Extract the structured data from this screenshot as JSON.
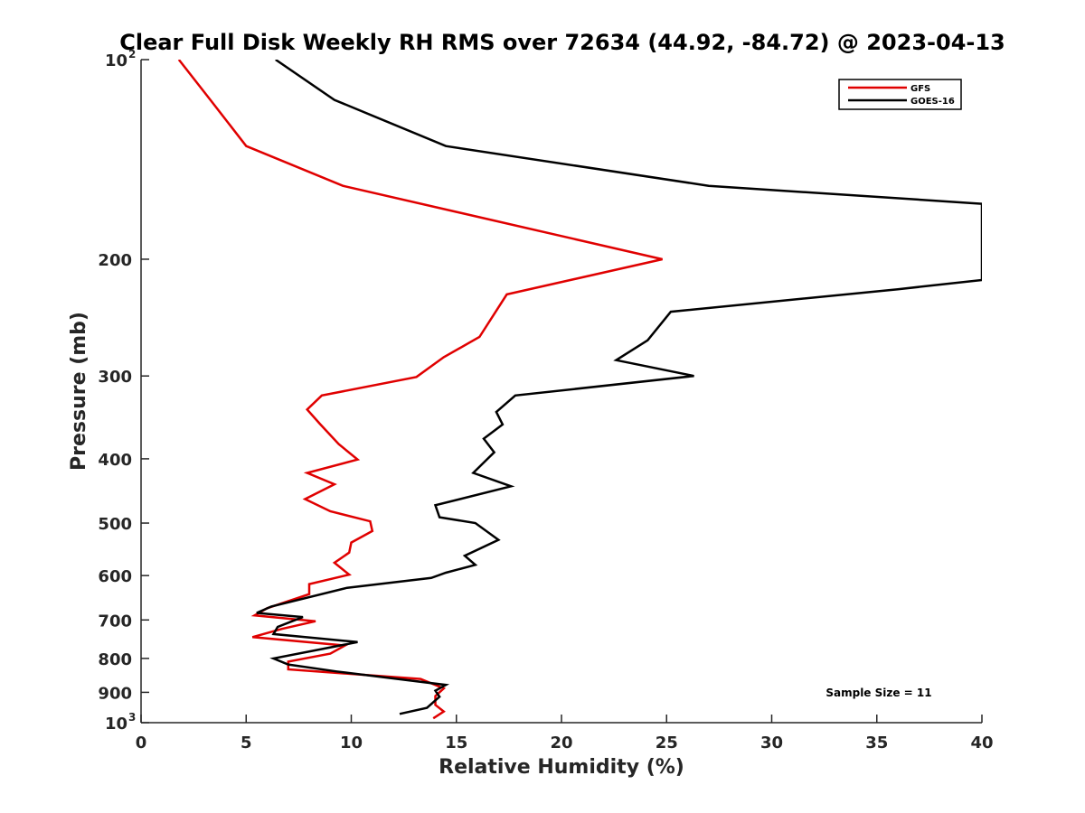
{
  "chart_data": {
    "type": "line",
    "title": "Clear Full Disk Weekly RH RMS over 72634 (44.92, -84.72) @ 2023-04-13",
    "xlabel": "Relative Humidity (%)",
    "ylabel": "Pressure (mb)",
    "xlim": [
      0,
      40
    ],
    "ylim": [
      100,
      1000
    ],
    "yscale": "log",
    "y_reversed": true,
    "x_ticks": [
      "0",
      "5",
      "10",
      "15",
      "20",
      "25",
      "30",
      "35",
      "40"
    ],
    "y_ticks": [
      {
        "value": 100,
        "base": "10",
        "exp": "2"
      },
      {
        "value": 200,
        "label": "200"
      },
      {
        "value": 300,
        "label": "300"
      },
      {
        "value": 400,
        "label": "400"
      },
      {
        "value": 500,
        "label": "500"
      },
      {
        "value": 600,
        "label": "600"
      },
      {
        "value": 700,
        "label": "700"
      },
      {
        "value": 800,
        "label": "800"
      },
      {
        "value": 900,
        "label": "900"
      },
      {
        "value": 1000,
        "base": "10",
        "exp": "3"
      }
    ],
    "legend_position": "top-right",
    "annotation": "Sample Size = 11",
    "series": [
      {
        "name": "GFS",
        "color": "#e00000",
        "points": [
          [
            1.8,
            100
          ],
          [
            3.3,
            115
          ],
          [
            5.0,
            135
          ],
          [
            9.6,
            155
          ],
          [
            24.8,
            200
          ],
          [
            17.4,
            226
          ],
          [
            16.1,
            262
          ],
          [
            14.4,
            281
          ],
          [
            13.1,
            301
          ],
          [
            8.6,
            321
          ],
          [
            7.9,
            337
          ],
          [
            8.5,
            354
          ],
          [
            9.4,
            380
          ],
          [
            10.3,
            401
          ],
          [
            7.9,
            420
          ],
          [
            9.2,
            437
          ],
          [
            7.8,
            460
          ],
          [
            9.0,
            480
          ],
          [
            10.9,
            497
          ],
          [
            11.0,
            514
          ],
          [
            10.0,
            535
          ],
          [
            9.9,
            554
          ],
          [
            9.2,
            574
          ],
          [
            9.9,
            598
          ],
          [
            8.0,
            618
          ],
          [
            8.0,
            640
          ],
          [
            6.0,
            672
          ],
          [
            5.4,
            689
          ],
          [
            8.3,
            703
          ],
          [
            6.7,
            722
          ],
          [
            5.3,
            743
          ],
          [
            9.7,
            765
          ],
          [
            9.0,
            787
          ],
          [
            7.0,
            809
          ],
          [
            7.0,
            831
          ],
          [
            13.3,
            859
          ],
          [
            14.4,
            888
          ],
          [
            14.0,
            912
          ],
          [
            14.0,
            940
          ],
          [
            14.4,
            962
          ],
          [
            13.9,
            985
          ]
        ]
      },
      {
        "name": "GOES-16",
        "color": "#000000",
        "points": [
          [
            6.4,
            100
          ],
          [
            9.2,
            115
          ],
          [
            14.5,
            135
          ],
          [
            27.0,
            155
          ],
          [
            40.0,
            165
          ],
          [
            40.0,
            215
          ],
          [
            36.0,
            222
          ],
          [
            25.2,
            240
          ],
          [
            24.1,
            265
          ],
          [
            22.6,
            284
          ],
          [
            26.3,
            300
          ],
          [
            17.8,
            321
          ],
          [
            16.9,
            340
          ],
          [
            17.2,
            355
          ],
          [
            16.3,
            373
          ],
          [
            16.8,
            391
          ],
          [
            15.8,
            420
          ],
          [
            17.6,
            440
          ],
          [
            14.0,
            470
          ],
          [
            14.2,
            490
          ],
          [
            15.9,
            500
          ],
          [
            17.0,
            530
          ],
          [
            15.4,
            560
          ],
          [
            15.9,
            578
          ],
          [
            14.5,
            594
          ],
          [
            13.8,
            605
          ],
          [
            9.8,
            626
          ],
          [
            6.2,
            668
          ],
          [
            5.5,
            683
          ],
          [
            7.7,
            693
          ],
          [
            6.5,
            717
          ],
          [
            6.3,
            735
          ],
          [
            10.3,
            756
          ],
          [
            6.3,
            800
          ],
          [
            7.0,
            817
          ],
          [
            9.3,
            837
          ],
          [
            14.5,
            877
          ],
          [
            14.0,
            895
          ],
          [
            14.2,
            914
          ],
          [
            13.6,
            950
          ],
          [
            12.3,
            970
          ]
        ]
      }
    ]
  }
}
